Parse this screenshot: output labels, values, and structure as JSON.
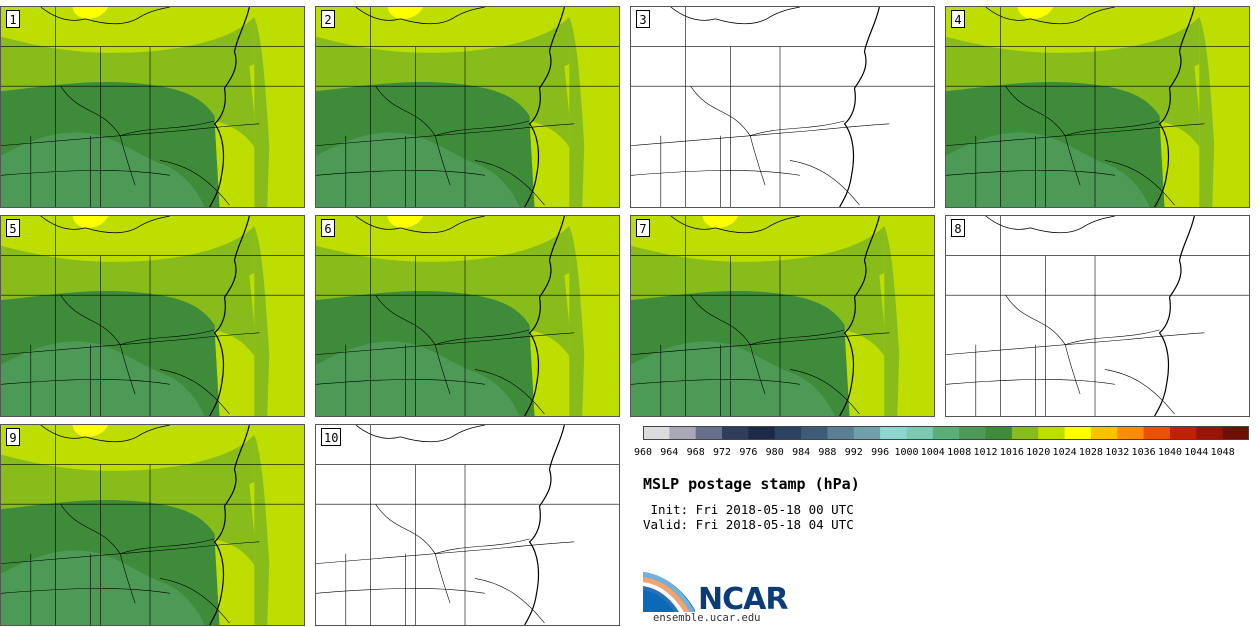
{
  "title": "MSLP postage stamp (hPa)",
  "init": " Init: Fri 2018-05-18 00 UTC",
  "valid": "Valid: Fri 2018-05-18 04 UTC",
  "site": "ensemble.ucar.edu",
  "logo_text": "NCAR",
  "panels": [
    {
      "label": "1",
      "has_data": true
    },
    {
      "label": "2",
      "has_data": true
    },
    {
      "label": "3",
      "has_data": false
    },
    {
      "label": "4",
      "has_data": true
    },
    {
      "label": "5",
      "has_data": true
    },
    {
      "label": "6",
      "has_data": true
    },
    {
      "label": "7",
      "has_data": true
    },
    {
      "label": "8",
      "has_data": false
    },
    {
      "label": "9",
      "has_data": true
    },
    {
      "label": "10",
      "has_data": false
    }
  ],
  "colorbar": {
    "ticks": [
      "960",
      "964",
      "968",
      "972",
      "976",
      "980",
      "984",
      "988",
      "992",
      "996",
      "1000",
      "1004",
      "1008",
      "1012",
      "1016",
      "1020",
      "1024",
      "1028",
      "1032",
      "1036",
      "1040",
      "1044",
      "1048"
    ],
    "colors": [
      "#dcdcdc",
      "#a8a8b8",
      "#66708a",
      "#2e3d5c",
      "#1c2a48",
      "#2c4260",
      "#3e5c78",
      "#5a7e92",
      "#6fa0aa",
      "#90d6d0",
      "#7cc8b0",
      "#5cae78",
      "#4c9a55",
      "#3e8c3a",
      "#88bc1a",
      "#bedd00",
      "#ffff00",
      "#ffc000",
      "#ff8c00",
      "#ec5000",
      "#c42000",
      "#9a1400",
      "#701000"
    ]
  },
  "shading": {
    "levels": [
      "#bedd00",
      "#88bc1a",
      "#3e8c3a",
      "#4c9a55",
      "#ffff00"
    ]
  }
}
